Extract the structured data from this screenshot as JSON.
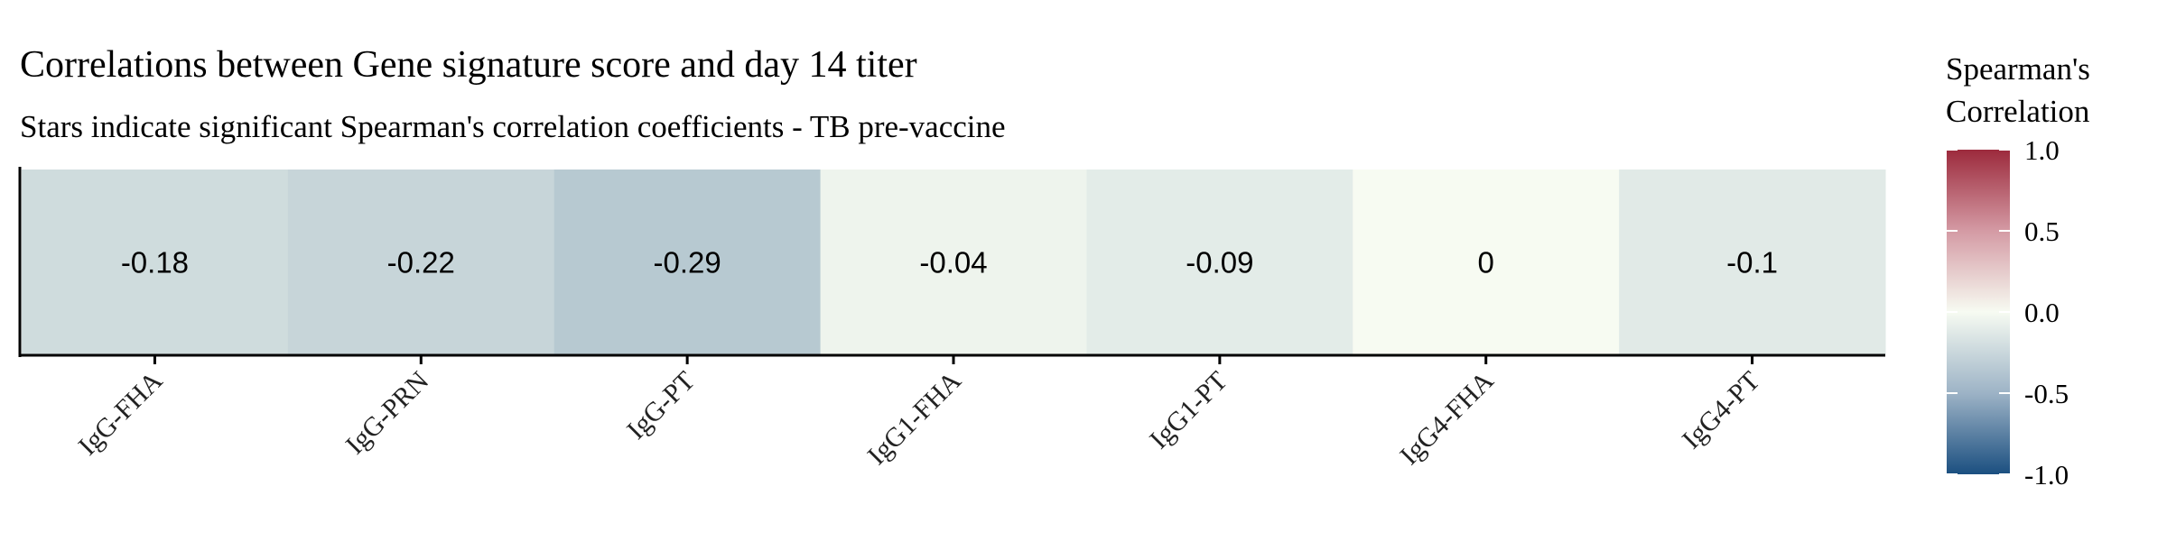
{
  "chart_data": {
    "type": "heatmap",
    "title": "Correlations between Gene signature score and day 14 titer",
    "subtitle": "Stars indicate significant Spearman's correlation coefficients - TB pre-vaccine",
    "categories": [
      "IgG-FHA",
      "IgG-PRN",
      "IgG-PT",
      "IgG1-FHA",
      "IgG1-PT",
      "IgG4-FHA",
      "IgG4-PT"
    ],
    "values": [
      -0.18,
      -0.22,
      -0.29,
      -0.04,
      -0.09,
      0,
      -0.1
    ],
    "value_labels": [
      "-0.18",
      "-0.22",
      "-0.29",
      "-0.04",
      "-0.09",
      "0",
      "-0.1"
    ],
    "colorbar": {
      "title_line1": "Spearman's",
      "title_line2": "Correlation",
      "range": [
        -1.0,
        1.0
      ],
      "ticks": [
        1.0,
        0.5,
        0.0,
        -0.5,
        -1.0
      ],
      "tick_labels": [
        "1.0",
        "0.5",
        "0.0",
        "-0.5",
        "-1.0"
      ],
      "low_color": "#1b4f80",
      "mid_color": "#f7fbf2",
      "high_color": "#9c2a3c"
    },
    "legend_position": "right"
  }
}
